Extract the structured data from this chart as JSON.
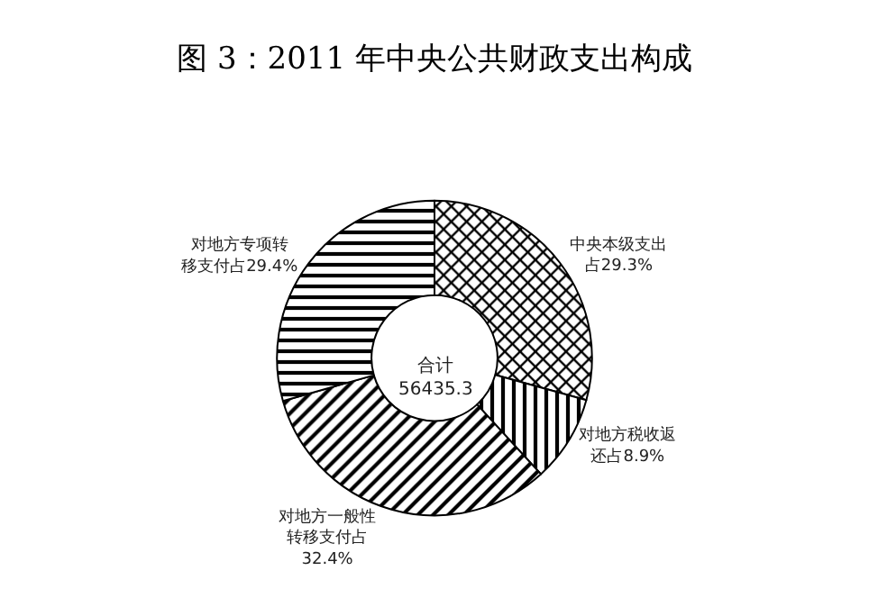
{
  "chart_data": {
    "type": "donut",
    "title": "图 3：2011 年中央公共财政支出构成",
    "categories": [
      "中央本级支出占29.3%",
      "对地方税收返还占8.9%",
      "对地方一般性转移支付占32.4%",
      "对地方专项转移支付占29.4%"
    ],
    "values": [
      29.3,
      8.9,
      32.4,
      29.4
    ],
    "colors": [
      "#000000",
      "#000000",
      "#000000",
      "#000000"
    ],
    "annotations": [
      "合计\n56435.3"
    ],
    "legend": false
  }
}
